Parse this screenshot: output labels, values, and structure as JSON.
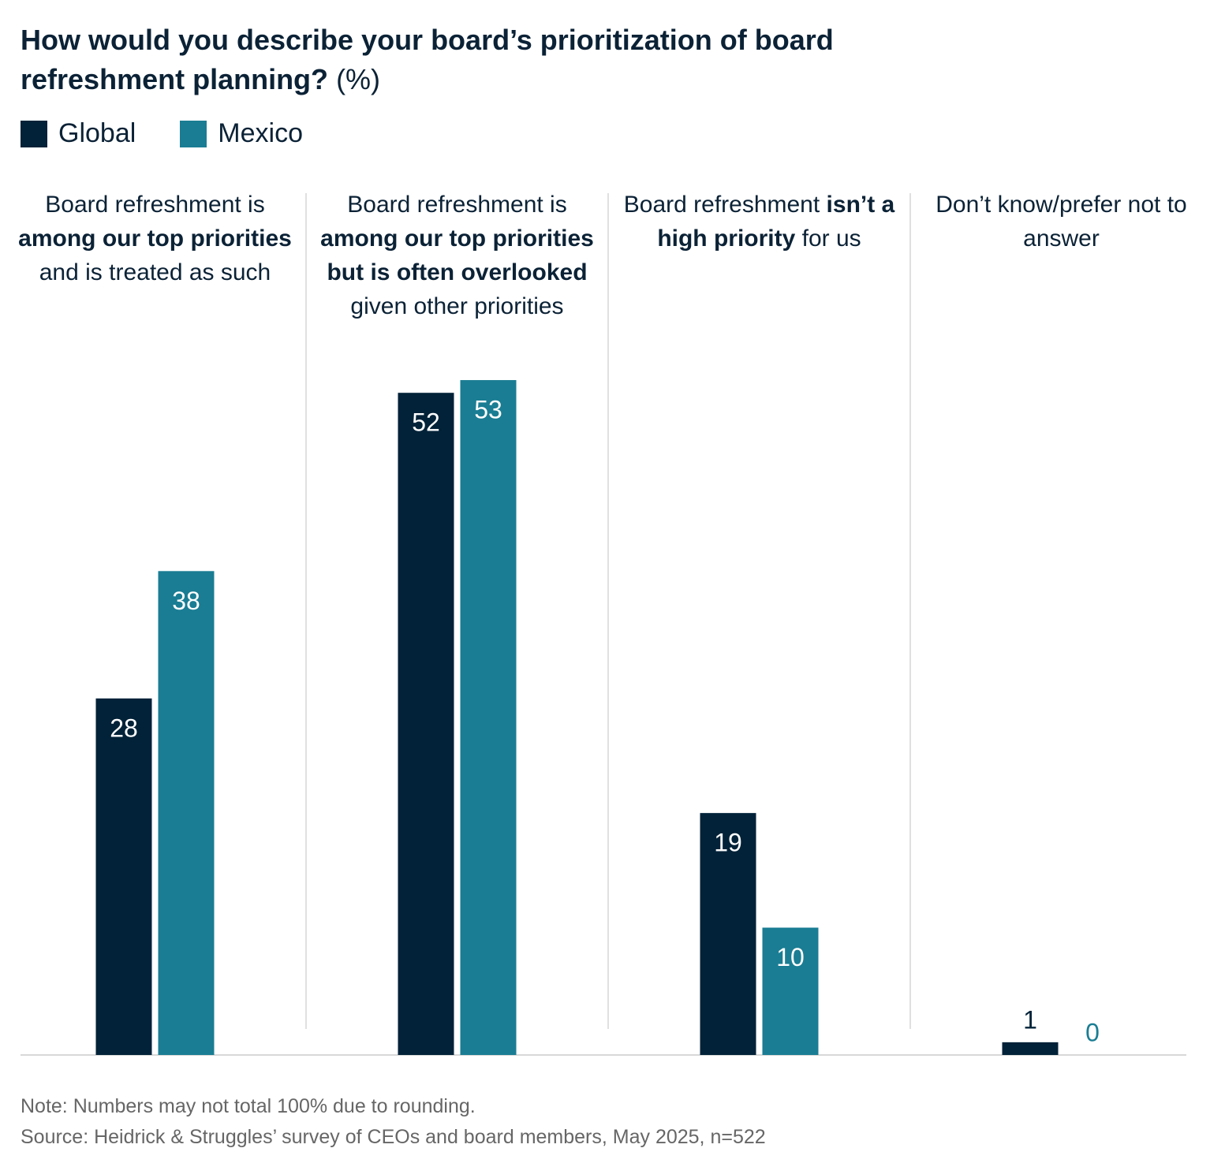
{
  "chart_data": {
    "type": "grouped_bar",
    "title": "How would you describe your board’s prioritization of board refreshment planning?",
    "unit": "(%)",
    "categories": [
      [
        {
          "text": "Board refreshment is "
        },
        {
          "text": "among our top priorities",
          "bold": true
        },
        {
          "text": " and is treated as such"
        }
      ],
      [
        {
          "text": "Board refreshment is "
        },
        {
          "text": "among our top priorities but is often overlooked",
          "bold": true
        },
        {
          "text": " given other priorities"
        }
      ],
      [
        {
          "text": "Board refreshment "
        },
        {
          "text": "isn’t a high priority",
          "bold": true
        },
        {
          "text": " for us"
        }
      ],
      [
        {
          "text": "Don’t know/prefer not to answer"
        }
      ]
    ],
    "series": [
      {
        "name": "Global",
        "color": "#012238",
        "values": [
          28,
          52,
          19,
          1
        ]
      },
      {
        "name": "Mexico",
        "color": "#1a7d93",
        "values": [
          38,
          53,
          10,
          0
        ]
      }
    ],
    "ylim": [
      0,
      55
    ],
    "note": "Note: Numbers may not total 100% due to rounding.",
    "source": "Source: Heidrick & Struggles’ survey of CEOs and board members, May 2025, n=522"
  }
}
